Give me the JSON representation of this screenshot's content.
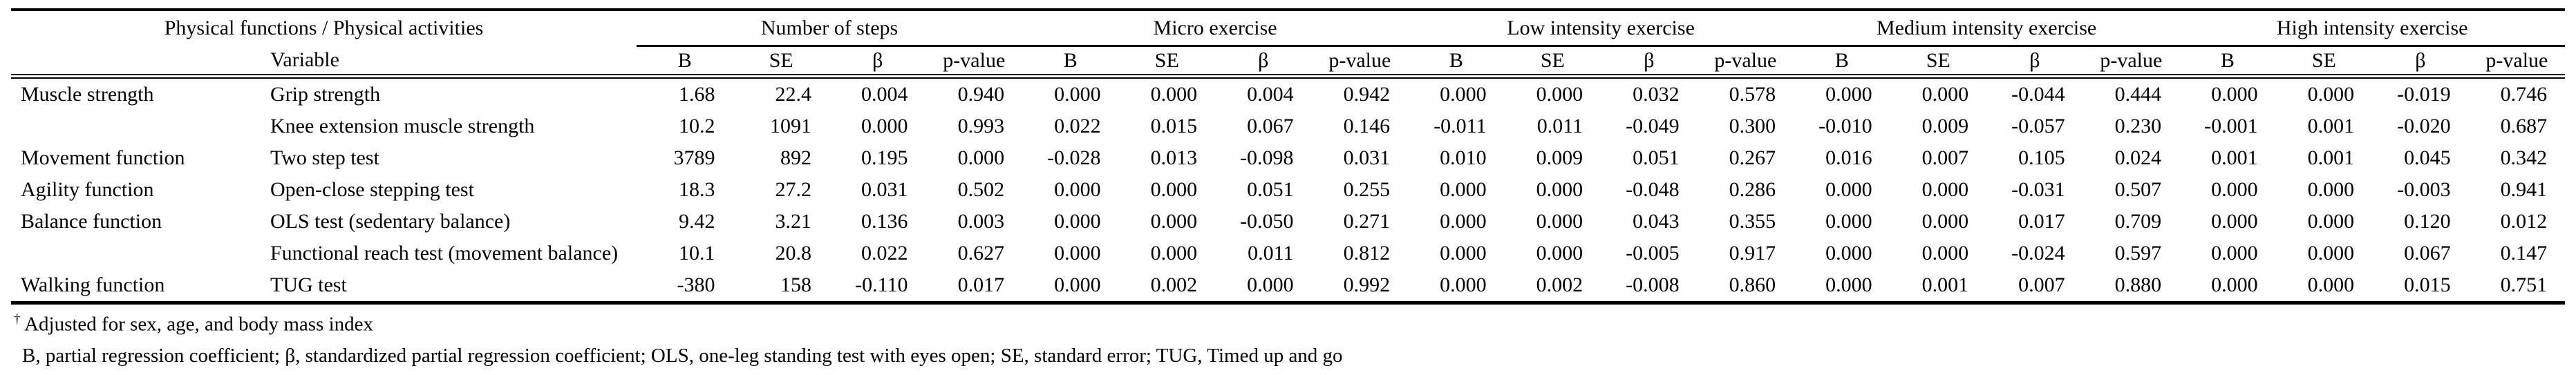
{
  "table": {
    "header": {
      "left_title": "Physical functions / Physical activities",
      "variable_label": "Variable",
      "groups": [
        "Number of steps",
        "Micro exercise",
        "Low intensity exercise",
        "Medium intensity exercise",
        "High intensity exercise"
      ],
      "stat_headers": [
        "B",
        "SE",
        "β",
        "p-value"
      ]
    },
    "rows": [
      {
        "function": "Muscle strength",
        "variable": "Grip strength",
        "values": [
          "1.68",
          "22.4",
          "0.004",
          "0.940",
          "0.000",
          "0.000",
          "0.004",
          "0.942",
          "0.000",
          "0.000",
          "0.032",
          "0.578",
          "0.000",
          "0.000",
          "-0.044",
          "0.444",
          "0.000",
          "0.000",
          "-0.019",
          "0.746"
        ]
      },
      {
        "function": "",
        "variable": "Knee extension muscle strength",
        "values": [
          "10.2",
          "1091",
          "0.000",
          "0.993",
          "0.022",
          "0.015",
          "0.067",
          "0.146",
          "-0.011",
          "0.011",
          "-0.049",
          "0.300",
          "-0.010",
          "0.009",
          "-0.057",
          "0.230",
          "-0.001",
          "0.001",
          "-0.020",
          "0.687"
        ]
      },
      {
        "function": "Movement function",
        "variable": "Two step test",
        "values": [
          "3789",
          "892",
          "0.195",
          "0.000",
          "-0.028",
          "0.013",
          "-0.098",
          "0.031",
          "0.010",
          "0.009",
          "0.051",
          "0.267",
          "0.016",
          "0.007",
          "0.105",
          "0.024",
          "0.001",
          "0.001",
          "0.045",
          "0.342"
        ]
      },
      {
        "function": "Agility function",
        "variable": "Open-close stepping test",
        "values": [
          "18.3",
          "27.2",
          "0.031",
          "0.502",
          "0.000",
          "0.000",
          "0.051",
          "0.255",
          "0.000",
          "0.000",
          "-0.048",
          "0.286",
          "0.000",
          "0.000",
          "-0.031",
          "0.507",
          "0.000",
          "0.000",
          "-0.003",
          "0.941"
        ]
      },
      {
        "function": "Balance function",
        "variable": "OLS test (sedentary balance)",
        "values": [
          "9.42",
          "3.21",
          "0.136",
          "0.003",
          "0.000",
          "0.000",
          "-0.050",
          "0.271",
          "0.000",
          "0.000",
          "0.043",
          "0.355",
          "0.000",
          "0.000",
          "0.017",
          "0.709",
          "0.000",
          "0.000",
          "0.120",
          "0.012"
        ]
      },
      {
        "function": "",
        "variable": "Functional reach test (movement balance)",
        "values": [
          "10.1",
          "20.8",
          "0.022",
          "0.627",
          "0.000",
          "0.000",
          "0.011",
          "0.812",
          "0.000",
          "0.000",
          "-0.005",
          "0.917",
          "0.000",
          "0.000",
          "-0.024",
          "0.597",
          "0.000",
          "0.000",
          "0.067",
          "0.147"
        ]
      },
      {
        "function": "Walking function",
        "variable": "TUG test",
        "values": [
          "-380",
          "158",
          "-0.110",
          "0.017",
          "0.000",
          "0.002",
          "0.000",
          "0.992",
          "0.000",
          "0.002",
          "-0.008",
          "0.860",
          "0.000",
          "0.001",
          "0.007",
          "0.880",
          "0.000",
          "0.000",
          "0.015",
          "0.751"
        ]
      }
    ],
    "footnotes": {
      "adjusted": {
        "marker": "†",
        "text": "Adjusted for sex, age, and body mass index"
      },
      "abbreviations": {
        "text": "B, partial regression coefficient; β, standardized partial regression coefficient; OLS, one-leg standing test with eyes open; SE, standard error; TUG, Timed up and go"
      }
    }
  }
}
